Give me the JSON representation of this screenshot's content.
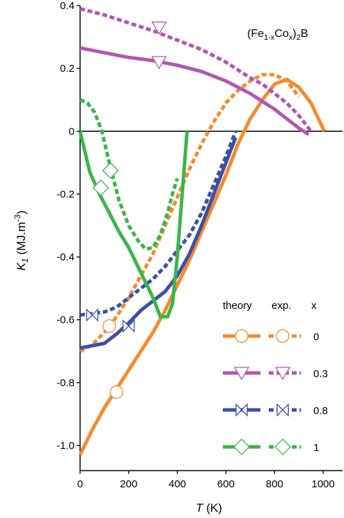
{
  "chart_data": {
    "type": "line",
    "annotation": {
      "base": "(Fe",
      "sub1": "1-x",
      "mid": "Co",
      "sub2": "x",
      "end": ")",
      "sub3": "2",
      "tail": "B"
    },
    "xlabel": {
      "symbol": "T",
      "unit": " (K)"
    },
    "ylabel": {
      "symbol": "K",
      "sub": "1",
      "unit": " (MJ.m",
      "sup": "-3",
      "close": ")"
    },
    "xlim": [
      0,
      1080
    ],
    "ylim": [
      -1.08,
      0.4
    ],
    "x_ticks": [
      0,
      200,
      400,
      600,
      800,
      1000
    ],
    "x_tick_labels": [
      "0",
      "200",
      "400",
      "600",
      "800",
      "1000"
    ],
    "y_ticks": [
      0.4,
      0.2,
      0,
      -0.2,
      -0.4,
      -0.6,
      -0.8,
      -1.0
    ],
    "y_tick_labels": [
      "0.4",
      "0.2",
      "0",
      "-0.2",
      "-0.4",
      "-0.6",
      "-0.8",
      "-1.0"
    ],
    "zero_line": true,
    "legend": {
      "headers": {
        "theory": "theory",
        "exp": "exp.",
        "x": "x"
      },
      "placement": "bottom-right",
      "entries": [
        {
          "label": "0",
          "color": "#f7892b",
          "marker": "circle"
        },
        {
          "label": "0.3",
          "color": "#b356b3",
          "marker": "triangle-down"
        },
        {
          "label": "0.8",
          "color": "#3b4fa8",
          "marker": "bowtie"
        },
        {
          "label": "1",
          "color": "#3cb54a",
          "marker": "diamond"
        }
      ]
    },
    "series": [
      {
        "x_value": "0",
        "kind": "theory",
        "color": "#f7892b",
        "marker": "circle",
        "x": [
          0,
          50,
          100,
          150,
          200,
          250,
          300,
          350,
          400,
          450,
          500,
          550,
          600,
          650,
          700,
          750,
          800,
          850,
          900,
          950,
          1005
        ],
        "y": [
          -1.03,
          -0.95,
          -0.88,
          -0.82,
          -0.76,
          -0.7,
          -0.64,
          -0.57,
          -0.49,
          -0.41,
          -0.32,
          -0.23,
          -0.14,
          -0.04,
          0.04,
          0.1,
          0.15,
          0.165,
          0.14,
          0.09,
          0.0
        ],
        "markers": [
          [
            150,
            -0.83
          ]
        ]
      },
      {
        "x_value": "0",
        "kind": "exp",
        "color": "#f7892b",
        "marker": "circle",
        "x": [
          0,
          50,
          100,
          150,
          200,
          250,
          300,
          350,
          400,
          450,
          500,
          550,
          600,
          650,
          700,
          750,
          800,
          850,
          900
        ],
        "y": [
          -0.7,
          -0.68,
          -0.64,
          -0.59,
          -0.53,
          -0.46,
          -0.39,
          -0.3,
          -0.21,
          -0.12,
          -0.04,
          0.03,
          0.09,
          0.13,
          0.16,
          0.18,
          0.18,
          0.16,
          0.11
        ],
        "markers": [
          [
            120,
            -0.62
          ]
        ]
      },
      {
        "x_value": "0.3",
        "kind": "theory",
        "color": "#b356b3",
        "marker": "triangle-down",
        "x": [
          0,
          100,
          200,
          300,
          400,
          500,
          600,
          700,
          800,
          850,
          900,
          940
        ],
        "y": [
          0.265,
          0.25,
          0.235,
          0.225,
          0.21,
          0.19,
          0.16,
          0.12,
          0.07,
          0.04,
          0.01,
          -0.01
        ],
        "markers": [
          [
            325,
            0.22
          ]
        ]
      },
      {
        "x_value": "0.3",
        "kind": "exp",
        "color": "#b356b3",
        "marker": "triangle-down",
        "x": [
          0,
          100,
          200,
          300,
          400,
          500,
          600,
          700,
          750,
          800,
          850,
          900,
          950
        ],
        "y": [
          0.39,
          0.37,
          0.345,
          0.32,
          0.29,
          0.26,
          0.22,
          0.17,
          0.15,
          0.12,
          0.09,
          0.05,
          0.0
        ],
        "markers": [
          [
            325,
            0.33
          ]
        ]
      },
      {
        "x_value": "0.8",
        "kind": "theory",
        "color": "#3b4fa8",
        "marker": "bowtie",
        "x": [
          0,
          100,
          150,
          200,
          250,
          300,
          350,
          400,
          450,
          500,
          550,
          600,
          640
        ],
        "y": [
          -0.69,
          -0.675,
          -0.645,
          -0.61,
          -0.57,
          -0.54,
          -0.51,
          -0.46,
          -0.39,
          -0.3,
          -0.2,
          -0.1,
          -0.02
        ],
        "markers": [
          [
            200,
            -0.62
          ]
        ]
      },
      {
        "x_value": "0.8",
        "kind": "exp",
        "color": "#3b4fa8",
        "marker": "bowtie",
        "x": [
          0,
          50,
          100,
          150,
          200,
          250,
          300,
          350,
          400,
          450,
          500,
          550,
          600,
          640
        ],
        "y": [
          -0.585,
          -0.58,
          -0.575,
          -0.56,
          -0.53,
          -0.5,
          -0.47,
          -0.43,
          -0.38,
          -0.33,
          -0.26,
          -0.17,
          -0.08,
          0.0
        ],
        "markers": [
          [
            50,
            -0.585
          ]
        ]
      },
      {
        "x_value": "1",
        "kind": "theory",
        "color": "#3cb54a",
        "marker": "diamond",
        "x": [
          0,
          40,
          80,
          120,
          160,
          200,
          250,
          300,
          330,
          360,
          380,
          400,
          420,
          440
        ],
        "y": [
          0.0,
          -0.13,
          -0.2,
          -0.26,
          -0.32,
          -0.37,
          -0.45,
          -0.53,
          -0.59,
          -0.59,
          -0.55,
          -0.4,
          -0.2,
          0.0
        ],
        "markers": [
          [
            85,
            -0.18
          ]
        ]
      },
      {
        "x_value": "1",
        "kind": "exp",
        "color": "#3cb54a",
        "marker": "diamond",
        "x": [
          0,
          30,
          60,
          90,
          120,
          160,
          200,
          240,
          270,
          300,
          330,
          360,
          380,
          400
        ],
        "y": [
          0.1,
          0.09,
          0.06,
          0.0,
          -0.1,
          -0.22,
          -0.3,
          -0.35,
          -0.375,
          -0.37,
          -0.33,
          -0.26,
          -0.2,
          -0.15
        ],
        "markers": [
          [
            125,
            -0.125
          ]
        ]
      }
    ]
  }
}
